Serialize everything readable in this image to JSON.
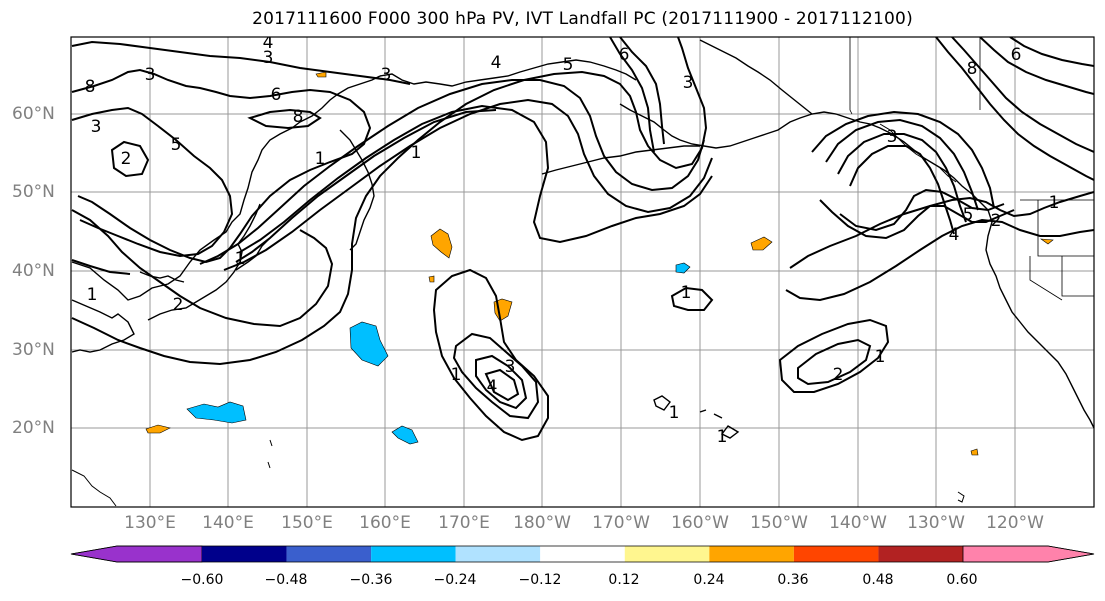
{
  "title": "2017111600 F000 300 hPa PV, IVT Landfall PC (2017111900 - 2017112100)",
  "map": {
    "lat_labels": [
      "60°N",
      "50°N",
      "40°N",
      "30°N",
      "20°N"
    ],
    "lon_labels": [
      "130°E",
      "140°E",
      "150°E",
      "160°E",
      "170°E",
      "180°W",
      "170°W",
      "160°W",
      "150°W",
      "140°W",
      "130°W",
      "120°W"
    ],
    "gridline_color": "#999999",
    "contour_color": "#000000",
    "contour_labels": [
      "4",
      "3",
      "8",
      "6",
      "3",
      "5",
      "3",
      "2",
      "3",
      "8",
      "1",
      "1",
      "4",
      "5",
      "6",
      "3",
      "1",
      "2",
      "1",
      "1",
      "3",
      "4",
      "1",
      "1",
      "1",
      "2",
      "1",
      "8",
      "6",
      "5",
      "4",
      "2",
      "3",
      "1"
    ],
    "shaded_anomalies": [
      {
        "label": "positive",
        "color": "#ffa500"
      },
      {
        "label": "negative",
        "color": "#00bfff"
      }
    ]
  },
  "colorbar": {
    "colors": [
      "#9932cc",
      "#00008b",
      "#3a5fcd",
      "#00bfff",
      "#b0e2ff",
      "#ffffff",
      "#fff68f",
      "#ffa500",
      "#ff4500",
      "#b22222",
      "#ff82ab"
    ],
    "tick_labels": [
      "−0.60",
      "−0.48",
      "−0.36",
      "−0.24",
      "−0.12",
      "0.12",
      "0.24",
      "0.36",
      "0.48",
      "0.60"
    ]
  }
}
